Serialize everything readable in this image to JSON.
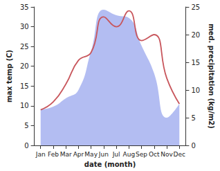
{
  "chart_data": {
    "type": "line",
    "x_label": "date (month)",
    "y_label": "max temp (C)",
    "y2_label": "med. precipitation (kg/m2)",
    "categories": [
      "Jan",
      "Feb",
      "Mar",
      "Apr",
      "May",
      "Jun",
      "Jul",
      "Aug",
      "Sep",
      "Oct",
      "Nov",
      "Dec"
    ],
    "ylim": [
      0,
      35
    ],
    "yticks": [
      0,
      5,
      10,
      15,
      20,
      25,
      30,
      35
    ],
    "y2lim": [
      0,
      25
    ],
    "y2ticks": [
      0,
      5,
      10,
      15,
      20,
      25
    ],
    "grid": false,
    "series": [
      {
        "name": "med. precipitation",
        "type": "area",
        "axis": "y2",
        "color": "#b3bdf2",
        "values": [
          6.5,
          7,
          8.5,
          10,
          17,
          24.5,
          23.5,
          23,
          18,
          13,
          5,
          7.5
        ]
      },
      {
        "name": "max temp",
        "type": "line",
        "color": "#c8565c",
        "values": [
          9,
          11,
          15.5,
          21.5,
          23.5,
          32.5,
          30,
          34,
          26.5,
          28,
          17,
          10.5
        ]
      }
    ]
  }
}
